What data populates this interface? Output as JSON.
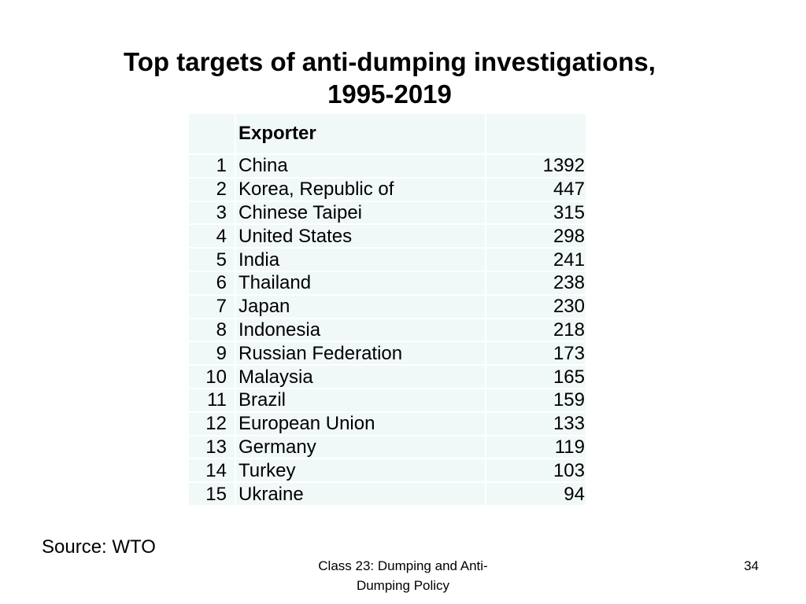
{
  "slide": {
    "title_line1": "Top targets of anti-dumping investigations,",
    "title_line2": "1995-2019"
  },
  "table": {
    "headers": {
      "rank": "",
      "exporter": "Exporter",
      "value": ""
    },
    "rows": [
      {
        "rank": "1",
        "exporter": "China",
        "value": "1392"
      },
      {
        "rank": "2",
        "exporter": "Korea, Republic of",
        "value": "447"
      },
      {
        "rank": "3",
        "exporter": "Chinese Taipei",
        "value": "315"
      },
      {
        "rank": "4",
        "exporter": "United States",
        "value": "298"
      },
      {
        "rank": "5",
        "exporter": "India",
        "value": "241"
      },
      {
        "rank": "6",
        "exporter": "Thailand",
        "value": "238"
      },
      {
        "rank": "7",
        "exporter": "Japan",
        "value": "230"
      },
      {
        "rank": "8",
        "exporter": "Indonesia",
        "value": "218"
      },
      {
        "rank": "9",
        "exporter": "Russian Federation",
        "value": "173"
      },
      {
        "rank": "10",
        "exporter": "Malaysia",
        "value": "165"
      },
      {
        "rank": "11",
        "exporter": "Brazil",
        "value": "159"
      },
      {
        "rank": "12",
        "exporter": "European Union",
        "value": "133"
      },
      {
        "rank": "13",
        "exporter": "Germany",
        "value": "119"
      },
      {
        "rank": "14",
        "exporter": "Turkey",
        "value": "103"
      },
      {
        "rank": "15",
        "exporter": "Ukraine",
        "value": "94"
      }
    ],
    "cell_color": "#f1f8f8"
  },
  "source": "Source:  WTO",
  "footer": {
    "line1": "Class 23:  Dumping and Anti-",
    "line2": "Dumping Policy",
    "page_number": "34"
  }
}
